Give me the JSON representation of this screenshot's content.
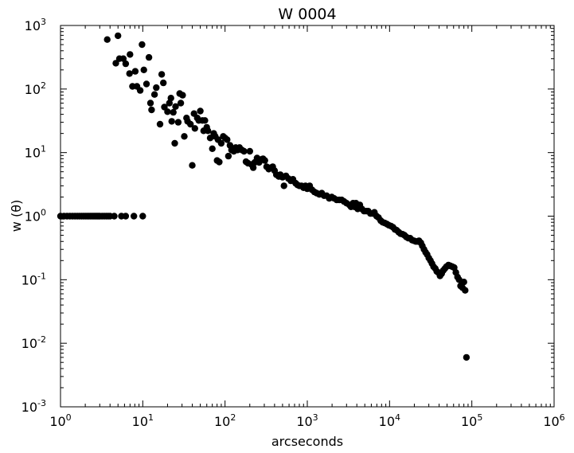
{
  "chart_data": {
    "type": "scatter",
    "title": "W 0004",
    "xlabel": "arcseconds",
    "ylabel": "w (θ)",
    "xscale": "log",
    "yscale": "log",
    "xlim": [
      1,
      1000000
    ],
    "ylim": [
      0.001,
      1000
    ],
    "grid": false,
    "legend": "none",
    "marker_color": "#000000",
    "x_ticks": [
      {
        "base": "10",
        "exp": "0",
        "value": 1
      },
      {
        "base": "10",
        "exp": "1",
        "value": 10
      },
      {
        "base": "10",
        "exp": "2",
        "value": 100
      },
      {
        "base": "10",
        "exp": "3",
        "value": 1000
      },
      {
        "base": "10",
        "exp": "4",
        "value": 10000
      },
      {
        "base": "10",
        "exp": "5",
        "value": 100000
      },
      {
        "base": "10",
        "exp": "6",
        "value": 1000000
      }
    ],
    "y_ticks": [
      {
        "base": "10",
        "exp": "3",
        "value": 1000
      },
      {
        "base": "10",
        "exp": "2",
        "value": 100
      },
      {
        "base": "10",
        "exp": "1",
        "value": 10
      },
      {
        "base": "10",
        "exp": "0",
        "value": 1
      },
      {
        "base": "10",
        "exp": "-1",
        "value": 0.1
      },
      {
        "base": "10",
        "exp": "-2",
        "value": 0.01
      },
      {
        "base": "10",
        "exp": "-3",
        "value": 0.001
      }
    ],
    "points": [
      [
        1.0,
        1.0
      ],
      [
        1.1,
        1.0
      ],
      [
        1.2,
        1.0
      ],
      [
        1.3,
        1.0
      ],
      [
        1.4,
        1.0
      ],
      [
        1.5,
        1.0
      ],
      [
        1.6,
        1.0
      ],
      [
        1.7,
        1.0
      ],
      [
        1.8,
        1.0
      ],
      [
        1.9,
        1.0
      ],
      [
        2.0,
        1.0
      ],
      [
        2.1,
        1.0
      ],
      [
        2.2,
        1.0
      ],
      [
        2.3,
        1.0
      ],
      [
        2.4,
        1.0
      ],
      [
        2.5,
        1.0
      ],
      [
        2.6,
        1.0
      ],
      [
        2.7,
        1.0
      ],
      [
        2.8,
        1.0
      ],
      [
        2.9,
        1.0
      ],
      [
        3.0,
        1.0
      ],
      [
        3.2,
        1.0
      ],
      [
        3.4,
        1.0
      ],
      [
        3.6,
        1.0
      ],
      [
        3.8,
        1.0
      ],
      [
        4.0,
        1.0
      ],
      [
        4.5,
        1.0
      ],
      [
        5.5,
        1.0
      ],
      [
        6.2,
        1.0
      ],
      [
        7.8,
        1.0
      ],
      [
        10.0,
        1.0
      ],
      [
        3.7,
        600
      ],
      [
        5.0,
        690
      ],
      [
        4.7,
        255
      ],
      [
        5.2,
        300
      ],
      [
        5.8,
        300
      ],
      [
        6.2,
        250
      ],
      [
        7.0,
        350
      ],
      [
        6.9,
        175
      ],
      [
        7.5,
        110
      ],
      [
        8.1,
        190
      ],
      [
        8.5,
        110
      ],
      [
        9.3,
        95
      ],
      [
        9.8,
        500
      ],
      [
        10.3,
        200
      ],
      [
        11.1,
        120
      ],
      [
        11.9,
        315
      ],
      [
        12.4,
        60
      ],
      [
        12.8,
        47
      ],
      [
        13.9,
        82
      ],
      [
        14.6,
        105
      ],
      [
        16.2,
        28
      ],
      [
        17.0,
        170
      ],
      [
        17.8,
        125
      ],
      [
        18.3,
        52
      ],
      [
        20.0,
        44
      ],
      [
        21.1,
        60
      ],
      [
        22.0,
        72
      ],
      [
        22.5,
        31
      ],
      [
        23.5,
        43
      ],
      [
        24.5,
        14
      ],
      [
        25.0,
        53
      ],
      [
        27.0,
        30
      ],
      [
        28.1,
        85
      ],
      [
        29.0,
        60
      ],
      [
        30.5,
        80
      ],
      [
        32.0,
        18
      ],
      [
        34.0,
        35
      ],
      [
        35.0,
        31
      ],
      [
        38.0,
        28
      ],
      [
        40.0,
        6.3
      ],
      [
        42.0,
        41
      ],
      [
        43.0,
        24
      ],
      [
        46.0,
        35
      ],
      [
        48.0,
        32
      ],
      [
        50.0,
        45
      ],
      [
        53.0,
        32
      ],
      [
        55.0,
        22
      ],
      [
        57.0,
        32
      ],
      [
        60.0,
        25
      ],
      [
        62.0,
        22
      ],
      [
        66.0,
        17
      ],
      [
        70.0,
        11.5
      ],
      [
        73.0,
        20
      ],
      [
        76.0,
        18
      ],
      [
        80.0,
        7.5
      ],
      [
        82.0,
        16
      ],
      [
        85.0,
        7.1
      ],
      [
        90.0,
        14
      ],
      [
        95.0,
        18
      ],
      [
        100.0,
        17
      ],
      [
        106.0,
        16
      ],
      [
        110.0,
        8.8
      ],
      [
        115.0,
        13
      ],
      [
        120.0,
        11
      ],
      [
        128.0,
        10.5
      ],
      [
        135.0,
        12
      ],
      [
        142.0,
        11
      ],
      [
        150.0,
        12
      ],
      [
        160.0,
        11
      ],
      [
        170.0,
        10.5
      ],
      [
        180.0,
        7.2
      ],
      [
        190.0,
        6.8
      ],
      [
        200.0,
        10.5
      ],
      [
        210.0,
        6.5
      ],
      [
        220.0,
        5.8
      ],
      [
        230.0,
        7.0
      ],
      [
        245.0,
        8.2
      ],
      [
        260.0,
        7.0
      ],
      [
        275.0,
        7.8
      ],
      [
        290.0,
        8.0
      ],
      [
        305.0,
        7.5
      ],
      [
        320.0,
        6.0
      ],
      [
        340.0,
        5.5
      ],
      [
        360.0,
        5.8
      ],
      [
        380.0,
        6.0
      ],
      [
        400.0,
        5.2
      ],
      [
        420.0,
        4.5
      ],
      [
        450.0,
        4.2
      ],
      [
        470.0,
        4.5
      ],
      [
        500.0,
        4.1
      ],
      [
        520.0,
        3.0
      ],
      [
        550.0,
        4.3
      ],
      [
        590.0,
        3.9
      ],
      [
        630.0,
        3.6
      ],
      [
        670.0,
        3.8
      ],
      [
        720.0,
        3.3
      ],
      [
        760.0,
        3.1
      ],
      [
        800.0,
        3.0
      ],
      [
        850.0,
        3.0
      ],
      [
        900.0,
        2.8
      ],
      [
        950.0,
        3.0
      ],
      [
        1000.0,
        2.7
      ],
      [
        1070.0,
        3.0
      ],
      [
        1140.0,
        2.6
      ],
      [
        1220.0,
        2.4
      ],
      [
        1300.0,
        2.3
      ],
      [
        1400.0,
        2.2
      ],
      [
        1500.0,
        2.3
      ],
      [
        1600.0,
        2.1
      ],
      [
        1720.0,
        2.1
      ],
      [
        1850.0,
        1.9
      ],
      [
        1980.0,
        2.0
      ],
      [
        2120.0,
        1.9
      ],
      [
        2280.0,
        1.8
      ],
      [
        2450.0,
        1.8
      ],
      [
        2620.0,
        1.8
      ],
      [
        2800.0,
        1.7
      ],
      [
        3000.0,
        1.6
      ],
      [
        3250.0,
        1.5
      ],
      [
        3400.0,
        1.4
      ],
      [
        3600.0,
        1.6
      ],
      [
        3750.0,
        1.4
      ],
      [
        3900.0,
        1.6
      ],
      [
        4100.0,
        1.3
      ],
      [
        4350.0,
        1.5
      ],
      [
        4600.0,
        1.3
      ],
      [
        4900.0,
        1.2
      ],
      [
        5200.0,
        1.2
      ],
      [
        5500.0,
        1.2
      ],
      [
        5850.0,
        1.1
      ],
      [
        6200.0,
        1.1
      ],
      [
        6550.0,
        1.15
      ],
      [
        6950.0,
        1.0
      ],
      [
        7350.0,
        0.95
      ],
      [
        7800.0,
        0.85
      ],
      [
        8250.0,
        0.8
      ],
      [
        8750.0,
        0.78
      ],
      [
        9300.0,
        0.75
      ],
      [
        9800.0,
        0.72
      ],
      [
        10400.0,
        0.7
      ],
      [
        11000.0,
        0.67
      ],
      [
        11600.0,
        0.62
      ],
      [
        12200.0,
        0.6
      ],
      [
        12900.0,
        0.56
      ],
      [
        13600.0,
        0.53
      ],
      [
        14400.0,
        0.52
      ],
      [
        15200.0,
        0.5
      ],
      [
        16000.0,
        0.47
      ],
      [
        16900.0,
        0.45
      ],
      [
        17800.0,
        0.45
      ],
      [
        18800.0,
        0.42
      ],
      [
        19800.0,
        0.41
      ],
      [
        20800.0,
        0.4
      ],
      [
        21800.0,
        0.4
      ],
      [
        22800.0,
        0.41
      ],
      [
        24000.0,
        0.38
      ],
      [
        25000.0,
        0.34
      ],
      [
        26200.0,
        0.3
      ],
      [
        27400.0,
        0.27
      ],
      [
        28600.0,
        0.25
      ],
      [
        30000.0,
        0.22
      ],
      [
        31400.0,
        0.2
      ],
      [
        32800.0,
        0.18
      ],
      [
        34300.0,
        0.16
      ],
      [
        36000.0,
        0.15
      ],
      [
        37500.0,
        0.135
      ],
      [
        39000.0,
        0.13
      ],
      [
        41000.0,
        0.115
      ],
      [
        43000.0,
        0.125
      ],
      [
        45000.0,
        0.14
      ],
      [
        47000.0,
        0.15
      ],
      [
        49000.0,
        0.16
      ],
      [
        52000.0,
        0.17
      ],
      [
        55000.0,
        0.165
      ],
      [
        58000.0,
        0.16
      ],
      [
        61000.0,
        0.155
      ],
      [
        64000.0,
        0.13
      ],
      [
        67000.0,
        0.11
      ],
      [
        70000.0,
        0.1
      ],
      [
        73000.0,
        0.08
      ],
      [
        77000.0,
        0.075
      ],
      [
        80000.0,
        0.092
      ],
      [
        83000.0,
        0.068
      ],
      [
        86000.0,
        0.006
      ]
    ]
  }
}
